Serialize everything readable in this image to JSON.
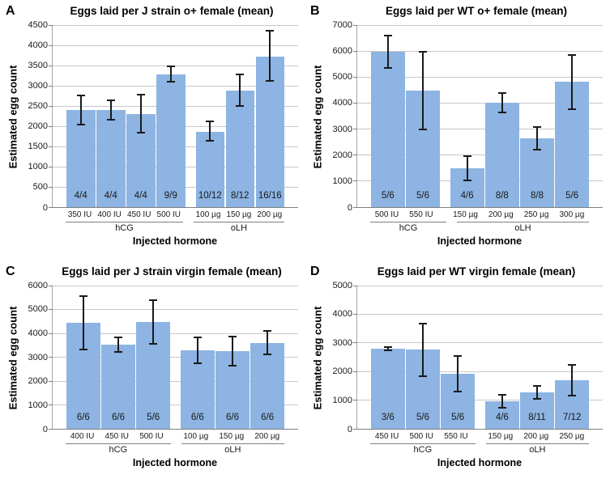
{
  "colors": {
    "bar_fill": "#8db4e2",
    "error_bar": "#1a1a1a",
    "gridline": "#c8c8c8",
    "axis_line": "#a6a6a6",
    "baseline": "#7f7f7f",
    "text": "#000000",
    "background": "#ffffff"
  },
  "chart_data": [
    {
      "type": "bar",
      "letter": "A",
      "title": "Eggs laid per J strain o+ female (mean)",
      "ylabel": "Estimated egg count",
      "xlabel": "Injected hormone",
      "ylim": [
        0,
        4500
      ],
      "ystep": 500,
      "grid": true,
      "error_bars": true,
      "groups": [
        {
          "name": "hCG",
          "bars": [
            {
              "label": "350 IU",
              "value": 2400,
              "err_lo": 2050,
              "err_hi": 2760,
              "n": "4/4"
            },
            {
              "label": "400 IU",
              "value": 2400,
              "err_lo": 2170,
              "err_hi": 2640,
              "n": "4/4"
            },
            {
              "label": "450 IU",
              "value": 2300,
              "err_lo": 1840,
              "err_hi": 2780,
              "n": "4/4"
            },
            {
              "label": "500 IU",
              "value": 3280,
              "err_lo": 3100,
              "err_hi": 3480,
              "n": "9/9"
            }
          ]
        },
        {
          "name": "oLH",
          "bars": [
            {
              "label": "100 µg",
              "value": 1870,
              "err_lo": 1640,
              "err_hi": 2120,
              "n": "10/12"
            },
            {
              "label": "150 µg",
              "value": 2890,
              "err_lo": 2510,
              "err_hi": 3280,
              "n": "8/12"
            },
            {
              "label": "200 µg",
              "value": 3730,
              "err_lo": 3120,
              "err_hi": 4360,
              "n": "16/16"
            }
          ]
        }
      ]
    },
    {
      "type": "bar",
      "letter": "B",
      "title": "Eggs laid per WT o+ female (mean)",
      "ylabel": "Estimated egg count",
      "xlabel": "Injected hormone",
      "ylim": [
        0,
        7000
      ],
      "ystep": 1000,
      "grid": true,
      "error_bars": true,
      "groups": [
        {
          "name": "hCG",
          "bars": [
            {
              "label": "500 IU",
              "value": 5970,
              "err_lo": 5350,
              "err_hi": 6600,
              "n": "5/6"
            },
            {
              "label": "550 IU",
              "value": 4490,
              "err_lo": 3000,
              "err_hi": 5980,
              "n": "5/6"
            }
          ]
        },
        {
          "name": "oLH",
          "bars": [
            {
              "label": "150 µg",
              "value": 1490,
              "err_lo": 1030,
              "err_hi": 1970,
              "n": "4/6"
            },
            {
              "label": "200 µg",
              "value": 4000,
              "err_lo": 3630,
              "err_hi": 4380,
              "n": "8/8"
            },
            {
              "label": "250 µg",
              "value": 2650,
              "err_lo": 2210,
              "err_hi": 3080,
              "n": "8/8"
            },
            {
              "label": "300 µg",
              "value": 4810,
              "err_lo": 3770,
              "err_hi": 5840,
              "n": "5/6"
            }
          ]
        }
      ]
    },
    {
      "type": "bar",
      "letter": "C",
      "title": "Eggs laid per J strain virgin female (mean)",
      "ylabel": "Estimated egg count",
      "xlabel": "Injected hormone",
      "ylim": [
        0,
        6000
      ],
      "ystep": 1000,
      "grid": true,
      "error_bars": true,
      "groups": [
        {
          "name": "hCG",
          "bars": [
            {
              "label": "400 IU",
              "value": 4430,
              "err_lo": 3320,
              "err_hi": 5570,
              "n": "6/6"
            },
            {
              "label": "450 IU",
              "value": 3530,
              "err_lo": 3220,
              "err_hi": 3840,
              "n": "6/6"
            },
            {
              "label": "500 IU",
              "value": 4470,
              "err_lo": 3560,
              "err_hi": 5400,
              "n": "5/6"
            }
          ]
        },
        {
          "name": "oLH",
          "bars": [
            {
              "label": "100 µg",
              "value": 3290,
              "err_lo": 2750,
              "err_hi": 3830,
              "n": "6/6"
            },
            {
              "label": "150 µg",
              "value": 3260,
              "err_lo": 2650,
              "err_hi": 3870,
              "n": "6/6"
            },
            {
              "label": "200 µg",
              "value": 3600,
              "err_lo": 3110,
              "err_hi": 4090,
              "n": "6/6"
            }
          ]
        }
      ]
    },
    {
      "type": "bar",
      "letter": "D",
      "title": "Eggs laid per WT virgin female (mean)",
      "ylabel": "Estimated egg count",
      "xlabel": "Injected hormone",
      "ylim": [
        0,
        5000
      ],
      "ystep": 1000,
      "grid": true,
      "error_bars": true,
      "groups": [
        {
          "name": "hCG",
          "bars": [
            {
              "label": "450 IU",
              "value": 2790,
              "err_lo": 2730,
              "err_hi": 2850,
              "n": "3/6"
            },
            {
              "label": "500 IU",
              "value": 2760,
              "err_lo": 1840,
              "err_hi": 3680,
              "n": "5/6"
            },
            {
              "label": "550 IU",
              "value": 1920,
              "err_lo": 1310,
              "err_hi": 2550,
              "n": "5/6"
            }
          ]
        },
        {
          "name": "oLH",
          "bars": [
            {
              "label": "150 µg",
              "value": 960,
              "err_lo": 730,
              "err_hi": 1190,
              "n": "4/6"
            },
            {
              "label": "200 µg",
              "value": 1280,
              "err_lo": 1050,
              "err_hi": 1510,
              "n": "8/11"
            },
            {
              "label": "250 µg",
              "value": 1700,
              "err_lo": 1160,
              "err_hi": 2240,
              "n": "7/12"
            }
          ]
        }
      ]
    }
  ]
}
